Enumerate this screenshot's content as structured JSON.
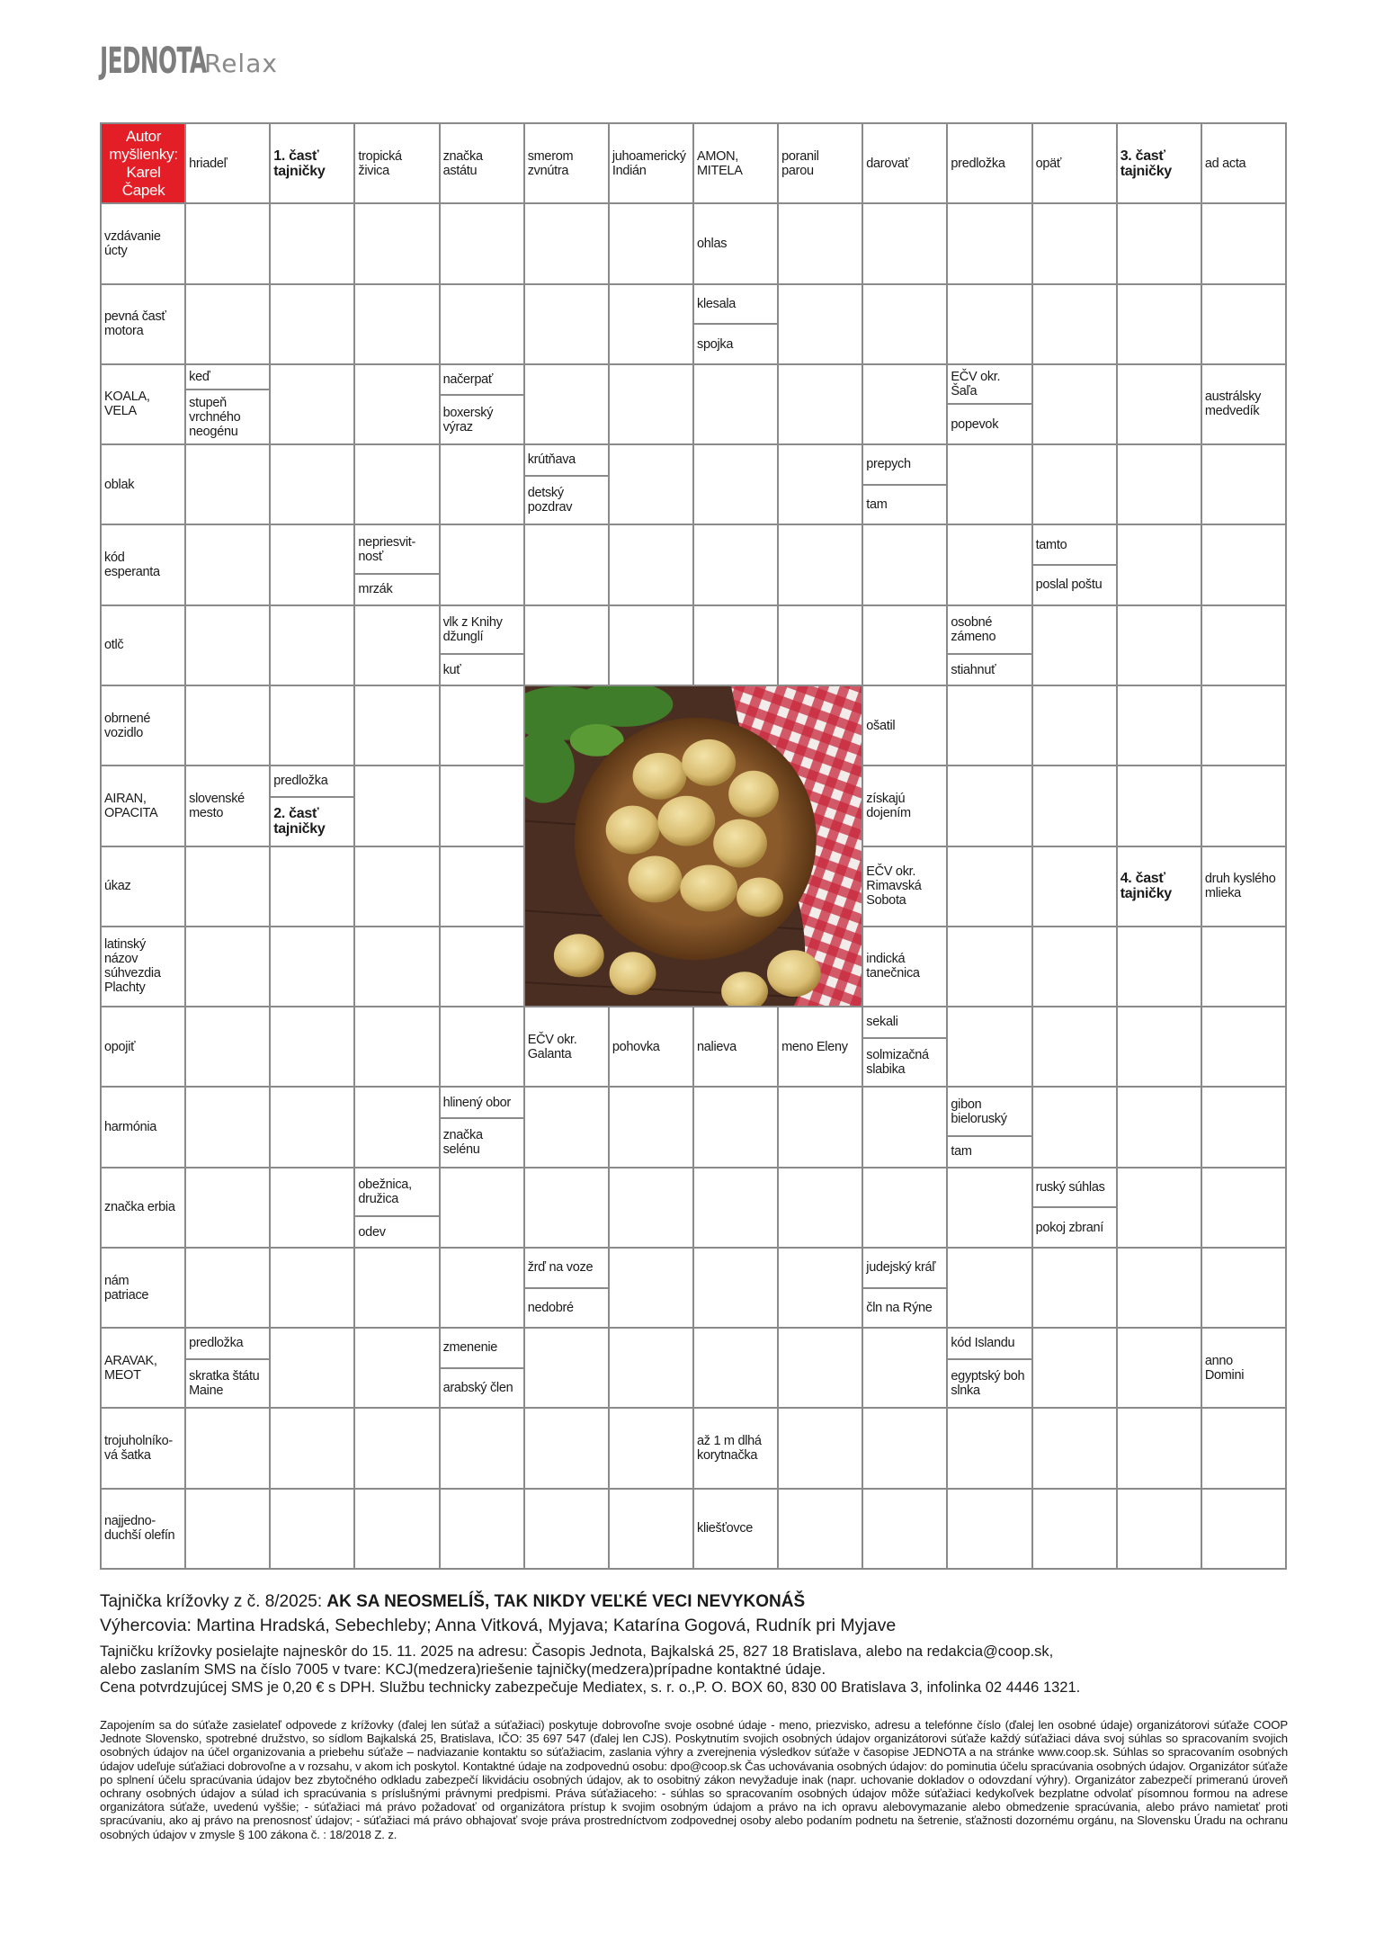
{
  "header": {
    "logo_main": "JEDNOTA",
    "logo_sub": "Relax"
  },
  "colors": {
    "author_cell": "#e41e26",
    "grid_lines": "#8a8a8a",
    "logo": "#7d7d7d"
  },
  "crossword": {
    "rows": [
      [
        {
          "t": "Autor\nmyšlienky:\nKarel Čapek",
          "style": "author"
        },
        {
          "t": "hriadeľ"
        },
        {
          "t": "1. časť\ntajničky",
          "style": "secret"
        },
        {
          "t": "tropická\nživica"
        },
        {
          "t": "značka\nastátu"
        },
        {
          "t": "smerom\nzvnútra"
        },
        {
          "t": "juhoamerický\nIndián"
        },
        {
          "t": "AMON,\nMITELA"
        },
        {
          "t": "poranil\nparou"
        },
        {
          "t": "darovať"
        },
        {
          "t": "predložka"
        },
        {
          "t": "opäť"
        },
        {
          "t": "3. časť\ntajničky",
          "style": "secret"
        },
        {
          "t": "ad acta"
        }
      ],
      [
        {
          "t": "vzdávanie\núcty"
        },
        "",
        "",
        "",
        "",
        "",
        "",
        {
          "t": "ohlas"
        },
        "",
        "",
        "",
        "",
        "",
        ""
      ],
      [
        {
          "t": "pevná časť\nmotora"
        },
        "",
        "",
        "",
        "",
        "",
        "",
        {
          "split": [
            "klesala",
            "spojka"
          ]
        },
        "",
        "",
        "",
        "",
        "",
        ""
      ],
      [
        {
          "t": "KOALA,\nVELA"
        },
        {
          "split": [
            "keď",
            "stupeň\nvrchného\nneogénu"
          ]
        },
        "",
        "",
        {
          "split": [
            "načerpať",
            "boxerský\nvýraz"
          ]
        },
        "",
        "",
        "",
        "",
        "",
        {
          "split": [
            "EČV okr. Šaľa",
            "popevok"
          ]
        },
        "",
        "",
        {
          "t": "austrálsky\nmedvedík"
        }
      ],
      [
        {
          "t": "oblak"
        },
        "",
        "",
        "",
        "",
        {
          "split": [
            "krútňava",
            "detský\npozdrav"
          ]
        },
        "",
        "",
        "",
        {
          "split": [
            "prepych",
            "tam"
          ]
        },
        "",
        "",
        "",
        ""
      ],
      [
        {
          "t": "kód\nesperanta"
        },
        "",
        "",
        {
          "split": [
            "nepriesvit-\nnosť",
            "mrzák"
          ]
        },
        "",
        "",
        "",
        "",
        "",
        "",
        "",
        {
          "split": [
            "tamto",
            "poslal poštu"
          ]
        },
        "",
        ""
      ],
      [
        {
          "t": "otlč"
        },
        "",
        "",
        "",
        {
          "split": [
            "vlk z Knihy\ndžunglí",
            "kuť"
          ]
        },
        "",
        "",
        "",
        "",
        "",
        {
          "split": [
            "osobné\nzámeno",
            "stiahnuť"
          ]
        },
        "",
        "",
        ""
      ],
      [
        {
          "t": "obrnené\nvozidlo"
        },
        "",
        "",
        "",
        "",
        null,
        null,
        null,
        null,
        {
          "t": "ošatil"
        },
        "",
        "",
        "",
        ""
      ],
      [
        {
          "t": "AIRAN,\nOPACITA"
        },
        {
          "t": "slovenské\nmesto"
        },
        {
          "split": [
            "predložka",
            "2. časť\ntajničky"
          ],
          "secret_part": 1
        },
        "",
        "",
        null,
        null,
        null,
        null,
        {
          "t": "získajú\ndojením"
        },
        "",
        "",
        "",
        ""
      ],
      [
        {
          "t": "úkaz"
        },
        "",
        "",
        "",
        "",
        null,
        null,
        null,
        null,
        {
          "t": "EČV okr.\nRimavská\nSobota"
        },
        "",
        "",
        {
          "t": "4. časť\ntajničky",
          "style": "secret"
        },
        {
          "t": "druh kyslého\nmlieka"
        }
      ],
      [
        {
          "t": "latinský\nnázov\nsúhvezdia\nPlachty"
        },
        "",
        "",
        "",
        "",
        null,
        null,
        null,
        null,
        {
          "t": "indická\ntanečnica"
        },
        "",
        "",
        "",
        ""
      ],
      [
        {
          "t": "opojiť"
        },
        "",
        "",
        "",
        "",
        {
          "t": "EČV okr.\nGalanta"
        },
        {
          "t": "pohovka"
        },
        {
          "t": "nalieva"
        },
        {
          "t": "meno Eleny"
        },
        {
          "split": [
            "sekali",
            "solmizačná\nslabika"
          ]
        },
        "",
        "",
        "",
        ""
      ],
      [
        {
          "t": "harmónia"
        },
        "",
        "",
        "",
        {
          "split": [
            "hlinený obor",
            "značka\nselénu"
          ]
        },
        "",
        "",
        "",
        "",
        "",
        {
          "split": [
            "gibon\nbieloruský",
            "tam"
          ]
        },
        "",
        "",
        ""
      ],
      [
        {
          "t": "značka erbia"
        },
        "",
        "",
        {
          "split": [
            "obežnica,\ndružica",
            "odev"
          ]
        },
        "",
        "",
        "",
        "",
        "",
        "",
        "",
        {
          "split": [
            "ruský súhlas",
            "pokoj zbraní"
          ]
        },
        "",
        ""
      ],
      [
        {
          "t": "nám\npatriace"
        },
        "",
        "",
        "",
        "",
        {
          "split": [
            "žrď na voze",
            "nedobré"
          ]
        },
        "",
        "",
        "",
        {
          "split": [
            "judejský kráľ",
            "čln na Rýne"
          ]
        },
        "",
        "",
        "",
        ""
      ],
      [
        {
          "t": "ARAVAK,\nMEOT"
        },
        {
          "split": [
            "predložka",
            "skratka štátu\nMaine"
          ]
        },
        "",
        "",
        {
          "split": [
            "zmenenie",
            "arabský člen"
          ]
        },
        "",
        "",
        "",
        "",
        "",
        {
          "split": [
            "kód Islandu",
            "egyptský boh\nslnka"
          ]
        },
        "",
        "",
        {
          "t": "anno\nDomini"
        }
      ],
      [
        {
          "t": "trojuholníko-\nvá šatka"
        },
        "",
        "",
        "",
        "",
        "",
        "",
        {
          "t": "až 1 m dlhá\nkorytnačka"
        },
        "",
        "",
        "",
        "",
        "",
        ""
      ],
      [
        {
          "t": "najjedno-\nduchší olefín"
        },
        "",
        "",
        "",
        "",
        "",
        "",
        {
          "t": "kliešťovce"
        },
        "",
        "",
        "",
        "",
        "",
        ""
      ]
    ]
  },
  "footer": {
    "previous_label": "Tajnička krížovky z č. 8/2025: ",
    "previous_solution": "AK SA NEOSMELÍŠ, TAK NIKDY VEĽKÉ VECI NEVYKONÁŠ",
    "winners": "Výhercovia: Martina Hradská, Sebechleby; Anna Vitková, Myjava; Katarína Gogová, Rudník pri Myjave",
    "instructions": "Tajničku krížovky posielajte najneskôr do 15. 11. 2025 na adresu: Časopis Jednota, Bajkalská 25, 827 18 Bratislava, alebo na redakcia@coop.sk,\nalebo zaslaním SMS na číslo 7005 v tvare: KCJ(medzera)riešenie tajničky(medzera)prípadne kontaktné údaje.\nCena potvrdzujúcej SMS je 0,20 € s DPH. Službu technicky zabezpečuje Mediatex, s. r. o.,P. O. BOX 60, 830 00 Bratislava 3, infolinka 02 4446 1321.",
    "legal": "Zapojením sa do súťaže zasielateľ odpovede z krížovky (ďalej len súťaž a súťažiaci) poskytuje dobrovoľne svoje osobné údaje - meno, priezvisko, adresu a telefónne číslo (ďalej len osobné údaje) organizátorovi súťaže COOP Jednote Slovensko, spotrebné družstvo, so sídlom Bajkalská 25, Bratislava, IČO: 35 697 547 (ďalej len CJS). Poskytnutím svojich osobných údajov organizátorovi súťaže každý súťažiaci dáva svoj súhlas so spracovaním svojich osobných údajov na účel organizovania a priebehu súťaže – nadviazanie kontaktu so súťažiacim, zaslania výhry a zverejnenia výsledkov súťaže v časopise JEDNOTA a na stránke www.coop.sk. Súhlas so spracovaním osobných údajov udeľuje súťažiaci dobrovoľne a v rozsahu, v akom ich poskytol. Kontaktné údaje na zodpovednú osobu: dpo@coop.sk Čas uchovávania osobných údajov: do pominutia účelu spracúvania osobných údajov. Organizátor súťaže po splnení účelu spracúvania údajov bez zbytočného odkladu zabezpečí likvidáciu osobných údajov, ak to osobitný zákon nevyžaduje inak (napr. uchovanie dokladov o odovzdaní výhry). Organizátor zabezpečí primeranú úroveň ochrany osobných údajov a súlad ich spracúvania s príslušnými právnymi predpismi. Práva súťažiaceho: - súhlas so spracovaním osobných údajov môže súťažiaci kedykoľvek bezplatne odvolať písomnou formou na adrese organizátora súťaže, uvedenú vyššie; - súťažiaci má právo požadovať od organizátora prístup k svojim osobným údajom a právo na ich opravu alebovymazanie alebo obmedzenie spracúvania, alebo právo namietať proti spracúvaniu, ako aj právo na prenosnosť údajov; - súťažiaci má právo obhajovať svoje práva prostredníctvom zodpovednej osoby alebo podaním podnetu na šetrenie, sťažnosti dozornému orgánu, na Slovensku Úradu na ochranu osobných údajov v zmysle § 100 zákona č. : 18/2018 Z. z."
  }
}
